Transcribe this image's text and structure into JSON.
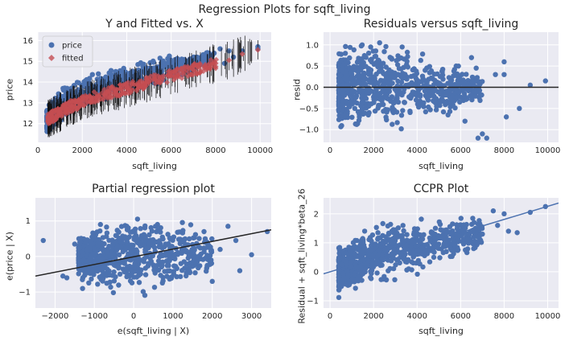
{
  "figure": {
    "suptitle": "Regression Plots for sqft_living",
    "colors": {
      "background": "#eaeaf2",
      "grid": "#ffffff",
      "scatter": "#4c72b0",
      "fitted": "#dd8452",
      "fitted_marker": "#c44e52",
      "line_dark": "#262626",
      "ccpr_line": "#4c72b0"
    }
  },
  "chart_data": [
    {
      "id": "yfit",
      "type": "scatter",
      "title": "Y and Fitted vs. X",
      "xlabel": "sqft_living",
      "ylabel": "price",
      "xlim": [
        0,
        10500
      ],
      "ylim": [
        11.1,
        16.4
      ],
      "xticks": [
        0,
        2000,
        4000,
        6000,
        8000,
        10000
      ],
      "yticks": [
        12,
        13,
        14,
        15,
        16
      ],
      "legend": {
        "placement": "top-left",
        "entries": [
          "price",
          "fitted"
        ]
      },
      "series": [
        {
          "name": "price",
          "marker": "circle",
          "color": "#4c72b0",
          "band": {
            "x": [
              400,
              1000,
              2000,
              3000,
              4000,
              5000,
              6000,
              7000,
              8000
            ],
            "lo": [
              11.4,
              12.0,
              12.7,
              13.1,
              13.4,
              13.7,
              14.0,
              14.4,
              14.8
            ],
            "hi": [
              12.9,
              13.8,
              14.3,
              14.6,
              14.9,
              15.2,
              15.4,
              15.5,
              15.6
            ]
          },
          "outliers": [
            [
              8400,
              14.9
            ],
            [
              8600,
              15.5
            ],
            [
              8800,
              15.2
            ],
            [
              9200,
              15.5
            ],
            [
              9900,
              15.6
            ],
            [
              9900,
              15.7
            ],
            [
              7500,
              15.3
            ],
            [
              7800,
              15.0
            ],
            [
              8200,
              15.6
            ]
          ]
        },
        {
          "name": "fitted",
          "marker": "diamond",
          "color": "#c44e52",
          "x": [
            500,
            1000,
            1500,
            2000,
            2500,
            3000,
            3500,
            4000,
            4500,
            5000,
            5500,
            6000,
            6500,
            7000,
            7500,
            8000,
            8600,
            9200,
            9900
          ],
          "y": [
            12.25,
            12.55,
            12.85,
            13.05,
            13.25,
            13.4,
            13.55,
            13.7,
            13.85,
            14.0,
            14.15,
            14.3,
            14.45,
            14.6,
            14.75,
            14.9,
            15.05,
            15.35,
            15.55
          ]
        }
      ]
    },
    {
      "id": "resid",
      "type": "scatter",
      "title": "Residuals versus sqft_living",
      "xlabel": "sqft_living",
      "ylabel": "resid",
      "xlim": [
        -300,
        10500
      ],
      "ylim": [
        -1.3,
        1.3
      ],
      "xticks": [
        0,
        2000,
        4000,
        6000,
        8000,
        10000
      ],
      "yticks": [
        -1.0,
        -0.5,
        0.0,
        0.5,
        1.0
      ],
      "ytick_labels": [
        "−1.0",
        "−0.5",
        "0.0",
        "0.5",
        "1.0"
      ],
      "hline": 0,
      "band": {
        "x": [
          400,
          1000,
          2000,
          3000,
          4000,
          5000,
          6000,
          7000
        ],
        "lo": [
          -1.2,
          -1.2,
          -1.1,
          -1.1,
          -1.0,
          -0.8,
          -0.6,
          -0.5
        ],
        "hi": [
          1.2,
          1.25,
          1.25,
          1.2,
          1.0,
          0.8,
          0.6,
          0.5
        ]
      },
      "outliers": [
        [
          7000,
          -1.1
        ],
        [
          7200,
          -1.2
        ],
        [
          7600,
          0.3
        ],
        [
          8000,
          0.6
        ],
        [
          8000,
          0.3
        ],
        [
          8700,
          -0.5
        ],
        [
          9200,
          0.05
        ],
        [
          9900,
          0.15
        ],
        [
          5900,
          0.5
        ],
        [
          6500,
          0.7
        ],
        [
          6800,
          -1.2
        ],
        [
          8100,
          -0.7
        ],
        [
          6200,
          -0.8
        ]
      ]
    },
    {
      "id": "partial",
      "type": "scatter",
      "title": "Partial regression plot",
      "xlabel": "e(sqft_living | X)",
      "ylabel": "e(price | X)",
      "xlim": [
        -2500,
        3500
      ],
      "ylim": [
        -1.45,
        1.65
      ],
      "xticks": [
        -2000,
        -1000,
        0,
        1000,
        2000,
        3000
      ],
      "xtick_labels": [
        "−2000",
        "−1000",
        "0",
        "1000",
        "2000",
        "3000"
      ],
      "yticks": [
        -1,
        0,
        1
      ],
      "ytick_labels": [
        "−1",
        "0",
        "1"
      ],
      "fit_line": {
        "x": [
          -2500,
          3500
        ],
        "y": [
          -0.55,
          0.75
        ]
      },
      "band": {
        "x": [
          -1400,
          -1000,
          -500,
          0,
          500,
          1000,
          1500,
          2000
        ],
        "lo": [
          -0.7,
          -1.0,
          -1.2,
          -1.25,
          -1.2,
          -1.0,
          -0.8,
          -0.5
        ],
        "hi": [
          0.6,
          0.9,
          1.2,
          1.4,
          1.4,
          1.2,
          1.0,
          0.7
        ]
      },
      "outliers": [
        [
          -2300,
          0.45
        ],
        [
          -1800,
          -0.55
        ],
        [
          -1700,
          -0.6
        ],
        [
          -1500,
          0.35
        ],
        [
          2400,
          0.85
        ],
        [
          2600,
          0.45
        ],
        [
          2700,
          -0.4
        ],
        [
          3400,
          0.7
        ],
        [
          3000,
          0.05
        ],
        [
          2200,
          0.2
        ],
        [
          -1300,
          -0.9
        ],
        [
          2000,
          -0.7
        ]
      ]
    },
    {
      "id": "ccpr",
      "type": "scatter",
      "title": "CCPR Plot",
      "xlabel": "sqft_living",
      "ylabel": "Residual + sqft_living*beta_26",
      "xlim": [
        -300,
        10500
      ],
      "ylim": [
        -1.25,
        2.55
      ],
      "xticks": [
        0,
        2000,
        4000,
        6000,
        8000,
        10000
      ],
      "yticks": [
        -1,
        0,
        1,
        2
      ],
      "ytick_labels": [
        "−1",
        "0",
        "1",
        "2"
      ],
      "fit_line": {
        "x": [
          -300,
          10500
        ],
        "y": [
          -0.07,
          2.37
        ]
      },
      "band": {
        "x": [
          400,
          1000,
          2000,
          3000,
          4000,
          5000,
          6000,
          7000
        ],
        "lo": [
          -1.0,
          -0.9,
          -0.5,
          -0.3,
          -0.1,
          0.2,
          0.4,
          0.7
        ],
        "hi": [
          0.9,
          1.4,
          1.7,
          1.9,
          1.9,
          1.9,
          1.9,
          2.0
        ]
      },
      "outliers": [
        [
          7500,
          2.1
        ],
        [
          8000,
          2.0
        ],
        [
          8200,
          1.4
        ],
        [
          8600,
          1.35
        ],
        [
          9200,
          2.05
        ],
        [
          9900,
          2.25
        ],
        [
          7000,
          1.3
        ],
        [
          6600,
          0.8
        ],
        [
          7700,
          1.6
        ]
      ]
    }
  ]
}
